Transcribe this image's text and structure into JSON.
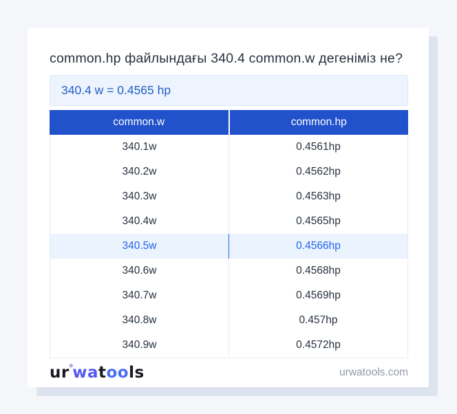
{
  "page": {
    "title": "common.hp файлындағы 340.4 common.w дегеніміз не?",
    "answer": "340.4 w = 0.4565 hp"
  },
  "table": {
    "columns": [
      "common.w",
      "common.hp"
    ],
    "rows": [
      {
        "w": "340.1w",
        "hp": "0.4561hp",
        "highlight": false
      },
      {
        "w": "340.2w",
        "hp": "0.4562hp",
        "highlight": false
      },
      {
        "w": "340.3w",
        "hp": "0.4563hp",
        "highlight": false
      },
      {
        "w": "340.4w",
        "hp": "0.4565hp",
        "highlight": false
      },
      {
        "w": "340.5w",
        "hp": "0.4566hp",
        "highlight": true
      },
      {
        "w": "340.6w",
        "hp": "0.4568hp",
        "highlight": false
      },
      {
        "w": "340.7w",
        "hp": "0.4569hp",
        "highlight": false
      },
      {
        "w": "340.8w",
        "hp": "0.457hp",
        "highlight": false
      },
      {
        "w": "340.9w",
        "hp": "0.4572hp",
        "highlight": false
      }
    ]
  },
  "footer": {
    "logo": {
      "seg1": "ur",
      "ring": "°",
      "seg2": "wa",
      "seg3": "t",
      "seg4": "oo",
      "seg5": "ls"
    },
    "domain": "urwatools.com"
  },
  "colors": {
    "page_background": "#f4f6fa",
    "card_shadow": "#dee4ef",
    "header_blue": "#2151cb",
    "highlight_row_bg": "#eaf3fe",
    "highlight_text": "#2563eb",
    "answer_box_bg": "#edf4fd",
    "answer_box_border": "#dbe8f8",
    "answer_text": "#2360c6",
    "body_text": "#27313f",
    "footer_domain_text": "#9199a8",
    "logo_accent_wa": "#5558ee",
    "logo_accent_oo": "#4a6df2"
  }
}
